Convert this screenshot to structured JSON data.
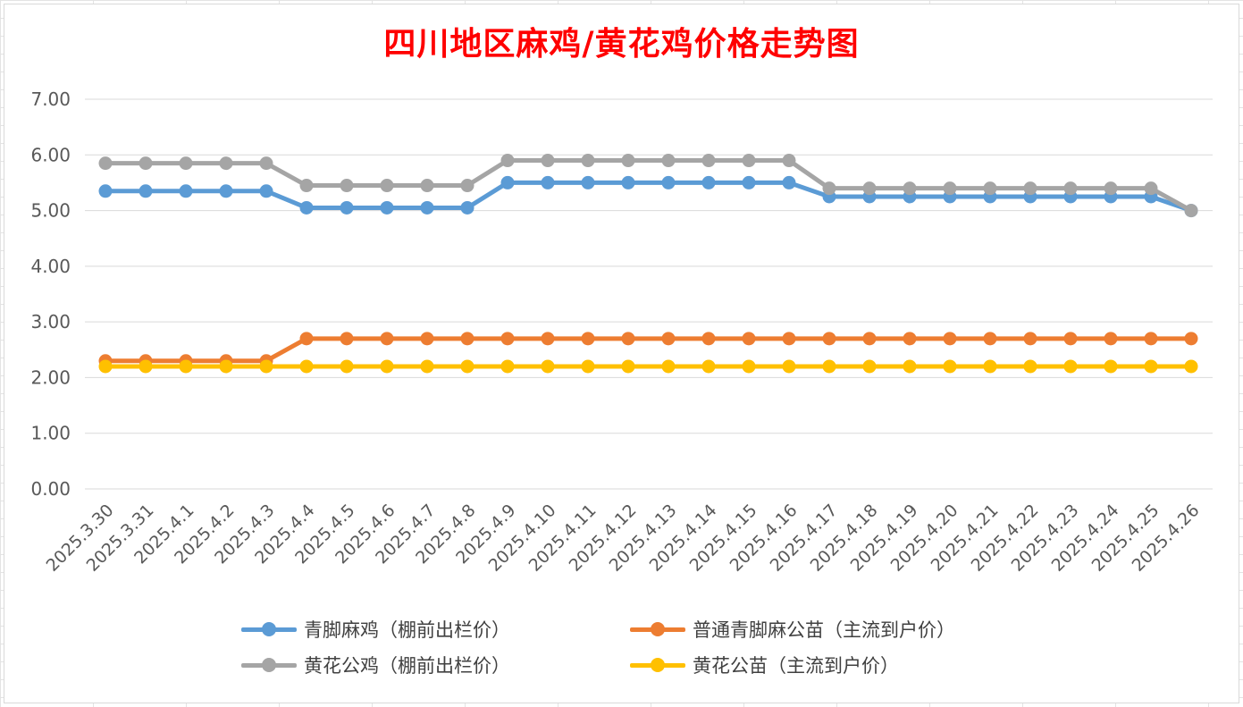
{
  "chart_data": {
    "type": "line",
    "title": "四川地区麻鸡/黄花鸡价格走势图",
    "categories": [
      "2025.3.30",
      "2025.3.31",
      "2025.4.1",
      "2025.4.2",
      "2025.4.3",
      "2025.4.4",
      "2025.4.5",
      "2025.4.6",
      "2025.4.7",
      "2025.4.8",
      "2025.4.9",
      "2025.4.10",
      "2025.4.11",
      "2025.4.12",
      "2025.4.13",
      "2025.4.14",
      "2025.4.15",
      "2025.4.16",
      "2025.4.17",
      "2025.4.18",
      "2025.4.19",
      "2025.4.20",
      "2025.4.21",
      "2025.4.22",
      "2025.4.23",
      "2025.4.24",
      "2025.4.25",
      "2025.4.26"
    ],
    "ylim": [
      0,
      7
    ],
    "yticks": [
      "0.00",
      "1.00",
      "2.00",
      "3.00",
      "4.00",
      "5.00",
      "6.00",
      "7.00"
    ],
    "grid": true,
    "legend_position": "bottom",
    "series": [
      {
        "name": "青脚麻鸡（棚前出栏价）",
        "color": "#5b9bd5",
        "values": [
          5.35,
          5.35,
          5.35,
          5.35,
          5.35,
          5.05,
          5.05,
          5.05,
          5.05,
          5.05,
          5.5,
          5.5,
          5.5,
          5.5,
          5.5,
          5.5,
          5.5,
          5.5,
          5.25,
          5.25,
          5.25,
          5.25,
          5.25,
          5.25,
          5.25,
          5.25,
          5.25,
          5.0
        ]
      },
      {
        "name": "普通青脚麻公苗（主流到户价）",
        "color": "#ed7d31",
        "values": [
          2.3,
          2.3,
          2.3,
          2.3,
          2.3,
          2.7,
          2.7,
          2.7,
          2.7,
          2.7,
          2.7,
          2.7,
          2.7,
          2.7,
          2.7,
          2.7,
          2.7,
          2.7,
          2.7,
          2.7,
          2.7,
          2.7,
          2.7,
          2.7,
          2.7,
          2.7,
          2.7,
          2.7
        ]
      },
      {
        "name": "黄花公鸡（棚前出栏价）",
        "color": "#a5a5a5",
        "values": [
          5.85,
          5.85,
          5.85,
          5.85,
          5.85,
          5.45,
          5.45,
          5.45,
          5.45,
          5.45,
          5.9,
          5.9,
          5.9,
          5.9,
          5.9,
          5.9,
          5.9,
          5.9,
          5.4,
          5.4,
          5.4,
          5.4,
          5.4,
          5.4,
          5.4,
          5.4,
          5.4,
          5.0
        ]
      },
      {
        "name": "黄花公苗（主流到户价）",
        "color": "#ffc000",
        "values": [
          2.2,
          2.2,
          2.2,
          2.2,
          2.2,
          2.2,
          2.2,
          2.2,
          2.2,
          2.2,
          2.2,
          2.2,
          2.2,
          2.2,
          2.2,
          2.2,
          2.2,
          2.2,
          2.2,
          2.2,
          2.2,
          2.2,
          2.2,
          2.2,
          2.2,
          2.2,
          2.2,
          2.2
        ]
      }
    ]
  }
}
